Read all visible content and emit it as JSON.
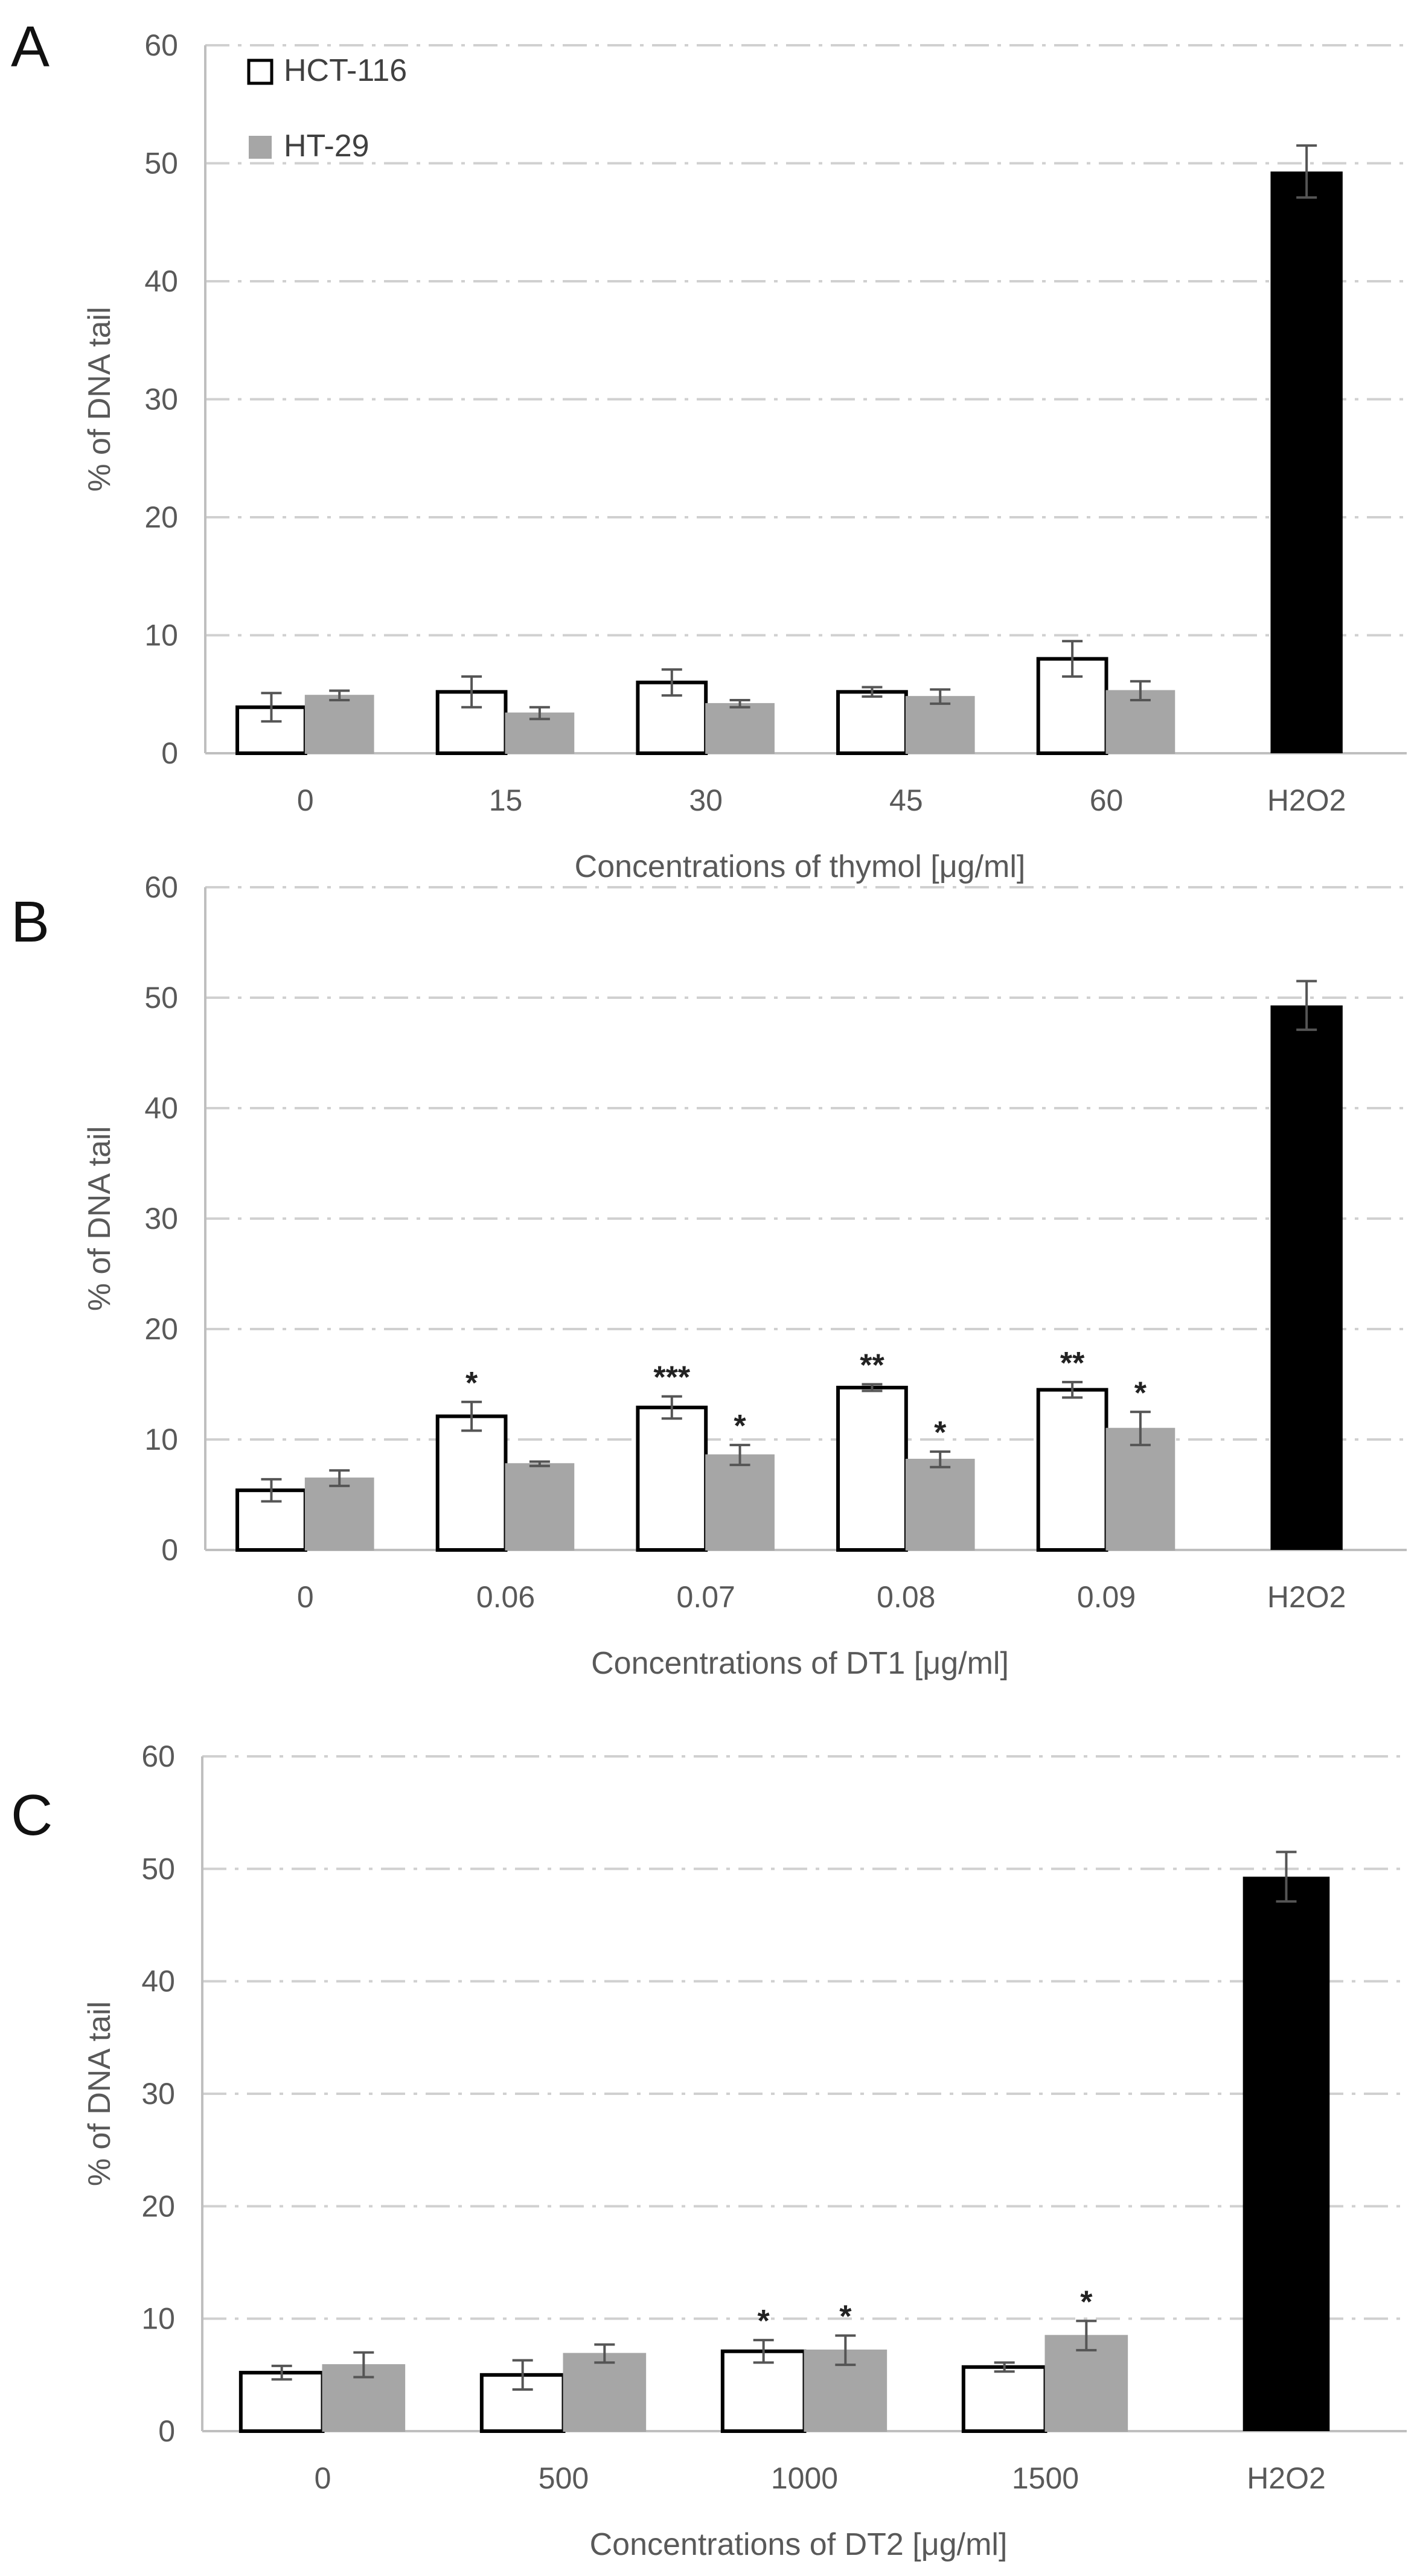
{
  "legend": {
    "series_1": "HCT-116",
    "series_2": "HT-29"
  },
  "colors": {
    "hct116_fill": "#ffffff",
    "hct116_stroke": "#000000",
    "ht29_fill": "#a6a6a6",
    "control_fill": "#000000",
    "gridline": "#d0d0d0",
    "axis": "#bfbfbf",
    "errorbar": "#555555"
  },
  "chart_data": [
    {
      "panel": "A",
      "type": "bar",
      "xlabel": "Concentrations of thymol  [μg/ml]",
      "ylabel": "% of DNA tail",
      "ylim": [
        0,
        60
      ],
      "yticks": [
        0,
        10,
        20,
        30,
        40,
        50,
        60
      ],
      "grid": true,
      "legend_position": "top-left",
      "categories": [
        "0",
        "15",
        "30",
        "45",
        "60"
      ],
      "series": [
        {
          "name": "HCT-116",
          "values": [
            3.9,
            5.2,
            6.0,
            5.2,
            8.0
          ],
          "errors": [
            1.2,
            1.3,
            1.1,
            0.4,
            1.5
          ],
          "significance": [
            "",
            "",
            "",
            "",
            ""
          ]
        },
        {
          "name": "HT-29",
          "values": [
            4.9,
            3.4,
            4.2,
            4.8,
            5.3
          ],
          "errors": [
            0.4,
            0.5,
            0.3,
            0.6,
            0.8
          ],
          "significance": [
            "",
            "",
            "",
            "",
            ""
          ]
        }
      ],
      "control": {
        "label": "H2O2",
        "value": 49.3,
        "error": 2.2,
        "significance": ""
      }
    },
    {
      "panel": "B",
      "type": "bar",
      "xlabel": "Concentrations of DT1 [μg/ml]",
      "ylabel": "% of DNA tail",
      "ylim": [
        0,
        60
      ],
      "yticks": [
        0,
        10,
        20,
        30,
        40,
        50,
        60
      ],
      "grid": true,
      "categories": [
        "0",
        "0.06",
        "0.07",
        "0.08",
        "0.09"
      ],
      "series": [
        {
          "name": "HCT-116",
          "values": [
            5.4,
            12.1,
            12.9,
            14.7,
            14.5
          ],
          "errors": [
            1.0,
            1.3,
            1.0,
            0.3,
            0.7
          ],
          "significance": [
            "",
            "*",
            "***",
            "**",
            "**"
          ]
        },
        {
          "name": "HT-29",
          "values": [
            6.5,
            7.8,
            8.6,
            8.2,
            11.0
          ],
          "errors": [
            0.7,
            0.2,
            0.9,
            0.7,
            1.5
          ],
          "significance": [
            "",
            "",
            "*",
            "*",
            "*"
          ]
        }
      ],
      "control": {
        "label": "H2O2",
        "value": 49.3,
        "error": 2.2,
        "significance": ""
      }
    },
    {
      "panel": "C",
      "type": "bar",
      "xlabel": "Concentrations of DT2 [μg/ml]",
      "ylabel": "% of DNA tail",
      "ylim": [
        0,
        60
      ],
      "yticks": [
        0,
        10,
        20,
        30,
        40,
        50,
        60
      ],
      "grid": true,
      "categories": [
        "0",
        "500",
        "1000",
        "1500"
      ],
      "series": [
        {
          "name": "HCT-116",
          "values": [
            5.2,
            5.0,
            7.1,
            5.7
          ],
          "errors": [
            0.6,
            1.3,
            1.0,
            0.4
          ],
          "significance": [
            "",
            "",
            "*",
            ""
          ]
        },
        {
          "name": "HT-29",
          "values": [
            5.9,
            6.9,
            7.2,
            8.5
          ],
          "errors": [
            1.1,
            0.8,
            1.3,
            1.3
          ],
          "significance": [
            "",
            "",
            "*",
            "*"
          ]
        }
      ],
      "control": {
        "label": "H2O2",
        "value": 49.3,
        "error": 2.2,
        "significance": ""
      }
    }
  ]
}
